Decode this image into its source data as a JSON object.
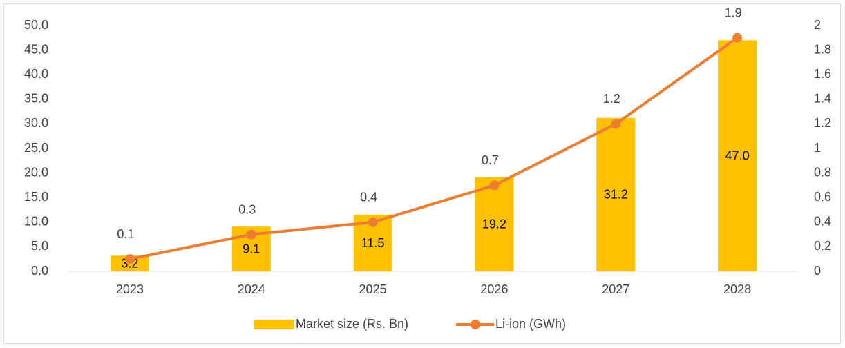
{
  "chart_data": {
    "type": "combo",
    "categories": [
      "2023",
      "2024",
      "2025",
      "2026",
      "2027",
      "2028"
    ],
    "series": [
      {
        "name": "Market size (Rs. Bn)",
        "type": "bar",
        "color": "#FFC000",
        "values": [
          3.2,
          9.1,
          11.5,
          19.2,
          31.2,
          47.0
        ],
        "value_labels": [
          "3.2",
          "9.1",
          "11.5",
          "19.2",
          "31.2",
          "47.0"
        ]
      },
      {
        "name": "Li-ion (GWh)",
        "type": "line",
        "axis": "y2",
        "color": "#ED7D31",
        "values": [
          0.1,
          0.3,
          0.4,
          0.7,
          1.2,
          1.9
        ]
      }
    ],
    "ylim": [
      0,
      50
    ],
    "yticks": [
      {
        "value": 0,
        "label": "0.0"
      },
      {
        "value": 5,
        "label": "5.0"
      },
      {
        "value": 10,
        "label": "10.0"
      },
      {
        "value": 15,
        "label": "15.0"
      },
      {
        "value": 20,
        "label": "20.0"
      },
      {
        "value": 25,
        "label": "25.0"
      },
      {
        "value": 30,
        "label": "30.0"
      },
      {
        "value": 35,
        "label": "35.0"
      },
      {
        "value": 40,
        "label": "40.0"
      },
      {
        "value": 45,
        "label": "45.0"
      },
      {
        "value": 50,
        "label": "50.0"
      }
    ],
    "y2lim": [
      0,
      2
    ],
    "y2ticks": [
      0,
      0.2,
      0.4,
      0.6,
      0.8,
      1,
      1.2,
      1.4,
      1.6,
      1.8,
      2
    ],
    "grid": false,
    "legend": "bottom"
  }
}
